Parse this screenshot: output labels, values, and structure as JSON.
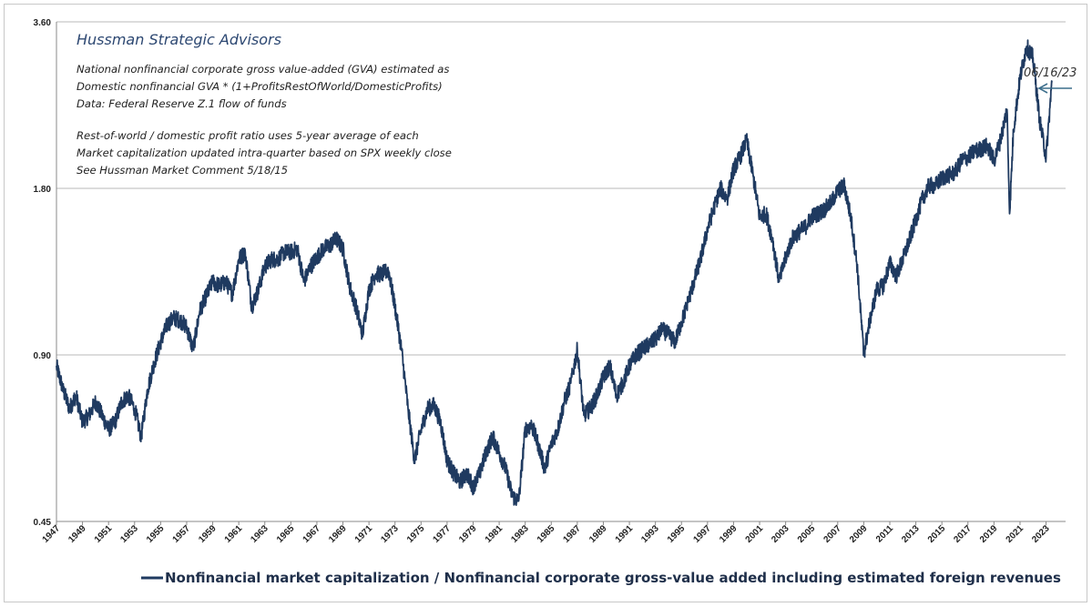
{
  "chart_data": {
    "type": "line",
    "title": "",
    "xlabel": "",
    "ylabel": "",
    "y_scale": "log",
    "ylim": [
      0.45,
      3.6
    ],
    "xlim": [
      1947,
      2024.5
    ],
    "y_ticks": [
      "3.60",
      "1.80",
      "0.90",
      "0.45"
    ],
    "x_ticks": [
      "1947",
      "1949",
      "1951",
      "1953",
      "1955",
      "1957",
      "1959",
      "1961",
      "1963",
      "1965",
      "1967",
      "1969",
      "1971",
      "1973",
      "1975",
      "1977",
      "1979",
      "1981",
      "1983",
      "1985",
      "1987",
      "1989",
      "1991",
      "1993",
      "1995",
      "1997",
      "1999",
      "2001",
      "2003",
      "2005",
      "2007",
      "2009",
      "2011",
      "2013",
      "2015",
      "2017",
      "2019",
      "2021",
      "2023"
    ],
    "grid": "horizontal",
    "legend_position": "bottom",
    "series": [
      {
        "name": "Nonfinancial market capitalization / Nonfinancial corporate gross-value added including estimated foreign revenues",
        "color": "#1f3a60",
        "x": [
          1947.0,
          1947.5,
          1948.0,
          1948.5,
          1949.0,
          1949.5,
          1950.0,
          1950.5,
          1951.0,
          1951.5,
          1952.0,
          1952.5,
          1953.0,
          1953.5,
          1954.0,
          1954.5,
          1955.0,
          1955.5,
          1956.0,
          1956.5,
          1957.0,
          1957.5,
          1958.0,
          1958.5,
          1959.0,
          1959.5,
          1960.0,
          1960.5,
          1961.0,
          1961.5,
          1962.0,
          1962.5,
          1963.0,
          1963.5,
          1964.0,
          1964.5,
          1965.0,
          1965.5,
          1966.0,
          1966.5,
          1967.0,
          1967.5,
          1968.0,
          1968.5,
          1969.0,
          1969.5,
          1970.0,
          1970.5,
          1971.0,
          1971.5,
          1972.0,
          1972.5,
          1973.0,
          1973.5,
          1974.0,
          1974.5,
          1975.0,
          1975.5,
          1976.0,
          1976.5,
          1977.0,
          1977.5,
          1978.0,
          1978.5,
          1979.0,
          1979.5,
          1980.0,
          1980.5,
          1981.0,
          1981.5,
          1982.0,
          1982.5,
          1983.0,
          1983.5,
          1984.0,
          1984.5,
          1985.0,
          1985.5,
          1986.0,
          1986.5,
          1987.0,
          1987.5,
          1988.0,
          1988.5,
          1989.0,
          1989.5,
          1990.0,
          1990.5,
          1991.0,
          1991.5,
          1992.0,
          1992.5,
          1993.0,
          1993.5,
          1994.0,
          1994.5,
          1995.0,
          1995.5,
          1996.0,
          1996.5,
          1997.0,
          1997.5,
          1998.0,
          1998.5,
          1999.0,
          1999.5,
          2000.0,
          2000.5,
          2001.0,
          2001.5,
          2002.0,
          2002.5,
          2003.0,
          2003.5,
          2004.0,
          2004.5,
          2005.0,
          2005.5,
          2006.0,
          2006.5,
          2007.0,
          2007.5,
          2008.0,
          2008.5,
          2009.0,
          2009.5,
          2010.0,
          2010.5,
          2011.0,
          2011.5,
          2012.0,
          2012.5,
          2013.0,
          2013.5,
          2014.0,
          2014.5,
          2015.0,
          2015.5,
          2016.0,
          2016.5,
          2017.0,
          2017.5,
          2018.0,
          2018.5,
          2019.0,
          2019.5,
          2020.0,
          2020.2,
          2020.5,
          2021.0,
          2021.5,
          2022.0,
          2022.5,
          2023.0,
          2023.45
        ],
        "values": [
          0.86,
          0.78,
          0.72,
          0.76,
          0.68,
          0.7,
          0.74,
          0.7,
          0.66,
          0.68,
          0.74,
          0.76,
          0.72,
          0.64,
          0.78,
          0.87,
          0.95,
          1.02,
          1.05,
          1.04,
          1.01,
          0.92,
          1.08,
          1.15,
          1.22,
          1.2,
          1.22,
          1.16,
          1.34,
          1.38,
          1.1,
          1.18,
          1.3,
          1.34,
          1.34,
          1.38,
          1.38,
          1.4,
          1.22,
          1.3,
          1.35,
          1.4,
          1.42,
          1.46,
          1.4,
          1.2,
          1.1,
          0.98,
          1.18,
          1.26,
          1.26,
          1.28,
          1.1,
          0.92,
          0.72,
          0.58,
          0.66,
          0.72,
          0.73,
          0.68,
          0.58,
          0.55,
          0.53,
          0.55,
          0.52,
          0.55,
          0.6,
          0.64,
          0.6,
          0.56,
          0.5,
          0.49,
          0.66,
          0.67,
          0.62,
          0.56,
          0.62,
          0.66,
          0.74,
          0.8,
          0.92,
          0.7,
          0.72,
          0.76,
          0.82,
          0.86,
          0.76,
          0.8,
          0.86,
          0.9,
          0.92,
          0.94,
          0.96,
          1.0,
          0.98,
          0.95,
          1.03,
          1.12,
          1.23,
          1.35,
          1.52,
          1.66,
          1.8,
          1.72,
          1.95,
          2.05,
          2.2,
          1.9,
          1.6,
          1.62,
          1.45,
          1.22,
          1.35,
          1.46,
          1.5,
          1.53,
          1.6,
          1.62,
          1.65,
          1.7,
          1.78,
          1.82,
          1.6,
          1.3,
          0.9,
          1.05,
          1.18,
          1.2,
          1.32,
          1.25,
          1.34,
          1.45,
          1.58,
          1.72,
          1.82,
          1.82,
          1.88,
          1.9,
          1.92,
          2.02,
          2.05,
          2.1,
          2.12,
          2.15,
          2.02,
          2.2,
          2.5,
          1.62,
          2.3,
          2.85,
          3.25,
          3.1,
          2.4,
          2.05,
          2.8
        ]
      }
    ]
  },
  "annotations": {
    "title": "Hussman Strategic Advisors",
    "lines": [
      "National nonfinancial corporate gross value-added (GVA) estimated as",
      "Domestic nonfinancial GVA * (1+ProfitsRestOfWorld/DomesticProfits)",
      "Data: Federal Reserve Z.1 flow of funds",
      "",
      "Rest-of-world / domestic profit ratio uses 5-year average of each",
      "Market capitalization updated intra-quarter based on SPX weekly close",
      "See Hussman Market Comment 5/18/15"
    ],
    "date_label": "06/16/23"
  },
  "legend": {
    "label": "Nonfinancial market capitalization / Nonfinancial corporate gross-value added including estimated foreign revenues"
  },
  "colors": {
    "line": "#1f3a60",
    "grid": "#b8b8b8",
    "axis": "#888888",
    "arrow": "#3c6e8c"
  }
}
